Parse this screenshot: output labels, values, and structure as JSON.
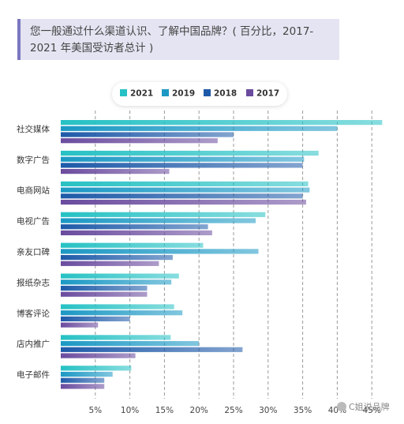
{
  "chart_data": {
    "type": "bar",
    "orientation": "horizontal",
    "title": "您一般通过什么渠道认识、了解中国品牌？( 百分比，2017-2021 年美国受访者总计 )",
    "title_lines": [
      "您一般通过什么渠道认识、了解中国品牌？( 百分比，2017-",
      "2021 年美国受访者总计 )"
    ],
    "categories": [
      "社交媒体",
      "数字广告",
      "电商网站",
      "电视广告",
      "亲友口碑",
      "报纸杂志",
      "博客评论",
      "店内推广",
      "电子邮件"
    ],
    "series": [
      {
        "name": "2021",
        "color": "#26c1c4",
        "values": [
          46.5,
          37.3,
          35.8,
          29.6,
          20.6,
          17.1,
          16.4,
          15.9,
          10.2
        ]
      },
      {
        "name": "2019",
        "color": "#1b98c4",
        "values": [
          40.0,
          35.2,
          36.0,
          28.2,
          28.6,
          16.0,
          17.6,
          20.0,
          7.5
        ]
      },
      {
        "name": "2018",
        "color": "#1e5aa8",
        "values": [
          25.0,
          35.0,
          35.0,
          21.3,
          16.2,
          12.5,
          10.0,
          26.3,
          6.3
        ]
      },
      {
        "name": "2017",
        "color": "#6a4b9e",
        "values": [
          22.7,
          15.7,
          35.5,
          21.9,
          14.2,
          12.5,
          5.4,
          10.8,
          6.3
        ]
      }
    ],
    "xlim": [
      0,
      47
    ],
    "ticks": [
      5,
      10,
      15,
      20,
      25,
      30,
      35,
      40,
      45
    ],
    "tick_labels": [
      "5%",
      "10%",
      "15%",
      "20%",
      "25%",
      "30%",
      "35%",
      "40%",
      "45%"
    ],
    "grid": true,
    "legend_position": "top-center"
  },
  "watermark": "C姐说品牌"
}
